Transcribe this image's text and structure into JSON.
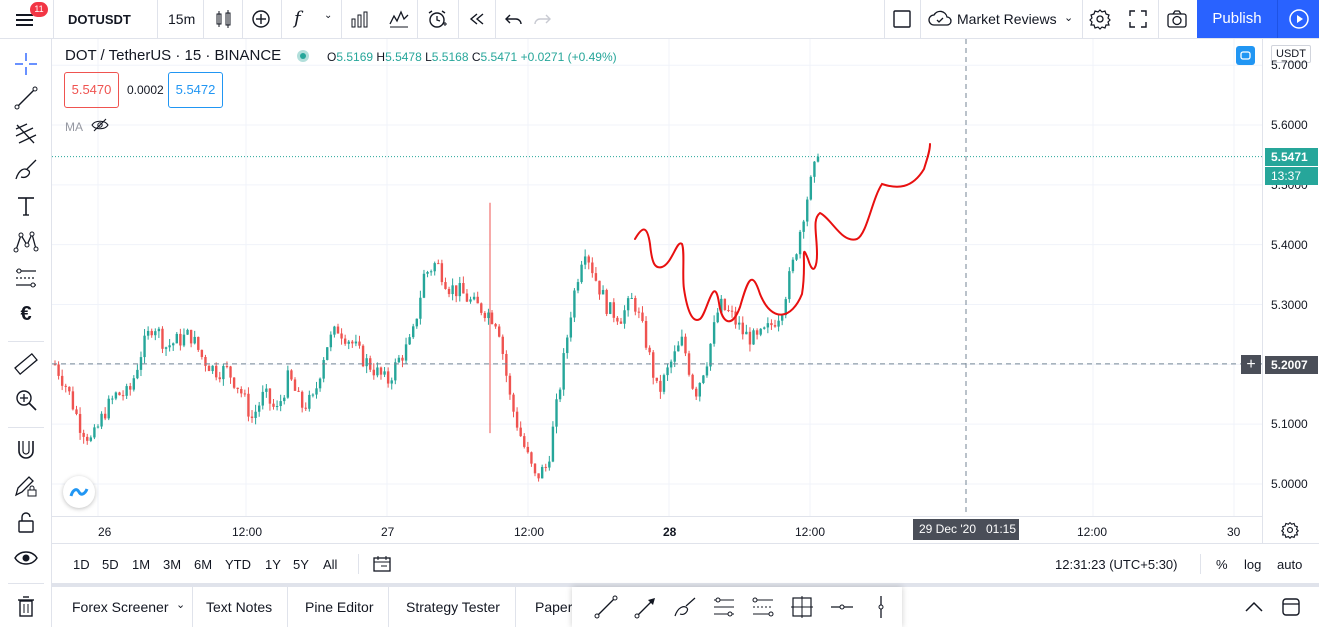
{
  "topbar": {
    "badge": "11",
    "symbol": "DOTUSDT",
    "interval": "15m",
    "fx": "f",
    "market_reviews": "Market Reviews",
    "publish": "Publish"
  },
  "legend": {
    "title": "DOT / TetherUS · 15 · BINANCE",
    "open_label": "O",
    "open": "5.5169",
    "high_label": "H",
    "high": "5.5478",
    "low_label": "L",
    "low": "5.5168",
    "close_label": "C",
    "close": "5.5471",
    "change": "+0.0271 (+0.49%)",
    "sell_price": "5.5470",
    "spread": "0.0002",
    "buy_price": "5.5472",
    "indicator": "MA"
  },
  "price_axis": {
    "currency": "USDT",
    "ticks": [
      "5.7000",
      "5.6000",
      "5.5000",
      "5.4000",
      "5.3000",
      "5.2000",
      "5.1000",
      "5.0000"
    ],
    "last_price": "5.5471",
    "countdown": "13:37",
    "crosshair_price": "5.2007"
  },
  "time_axis": {
    "ticks": [
      "26",
      "12:00",
      "27",
      "12:00",
      "28",
      "12:00",
      "12:00",
      "30"
    ],
    "crosshair_time": "29 Dec '20   01:15"
  },
  "range_bar": {
    "ranges": [
      "1D",
      "5D",
      "1M",
      "3M",
      "6M",
      "YTD",
      "1Y",
      "5Y",
      "All"
    ],
    "clock": "12:31:23 (UTC+5:30)",
    "percent": "%",
    "log": "log",
    "auto": "auto"
  },
  "bottom_bar": {
    "tabs": [
      "Forex Screener",
      "Text Notes",
      "Pine Editor",
      "Strategy Tester",
      "Paper"
    ]
  },
  "colors": {
    "up": "#26a69a",
    "down": "#ef5350",
    "accent": "#2962ff",
    "drawing": "#e81010"
  },
  "chart_data": {
    "type": "candlestick",
    "symbol": "DOT / TetherUS",
    "interval": "15",
    "exchange": "BINANCE",
    "ylim": [
      4.95,
      5.72
    ],
    "last": 5.5471,
    "crosshair": 5.2007,
    "path": [
      5.2,
      5.16,
      5.1,
      5.07,
      5.12,
      5.15,
      5.15,
      5.22,
      5.27,
      5.23,
      5.24,
      5.25,
      5.21,
      5.19,
      5.19,
      5.16,
      5.11,
      5.15,
      5.12,
      5.18,
      5.13,
      5.14,
      5.23,
      5.26,
      5.24,
      5.21,
      5.19,
      5.17,
      5.21,
      5.24,
      5.35,
      5.37,
      5.33,
      5.32,
      5.3,
      5.29,
      5.27,
      5.14,
      5.07,
      5.01,
      5.03,
      5.16,
      5.3,
      5.4,
      5.34,
      5.29,
      5.28,
      5.31,
      5.24,
      5.15,
      5.2,
      5.24,
      5.15,
      5.21,
      5.3,
      5.28,
      5.25,
      5.24,
      5.26,
      5.29,
      5.37,
      5.47,
      5.547
    ]
  }
}
